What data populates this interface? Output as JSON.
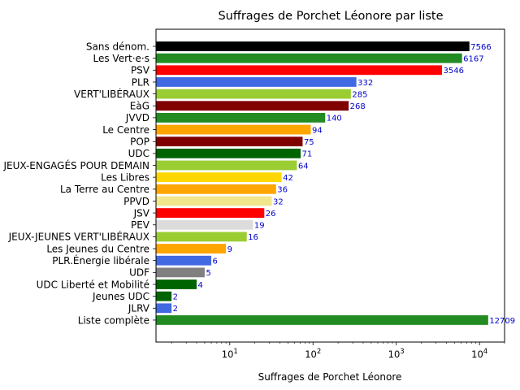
{
  "chart_data": {
    "type": "bar",
    "orientation": "horizontal",
    "title": "Suffrages de Porchet Léonore par liste",
    "xlabel": "Suffrages de Porchet Léonore",
    "ylabel": "",
    "xscale": "log",
    "xlim": [
      1.3,
      20000
    ],
    "grid": false,
    "categories": [
      "Sans dénom.",
      "Les Vert·e·s",
      "PSV",
      "PLR",
      "VERT'LIBÉRAUX",
      "EàG",
      "JVVD",
      "Le Centre",
      "POP",
      "UDC",
      "JEUX-ENGAGÉS POUR DEMAIN",
      "Les Libres",
      "La Terre au Centre",
      "PPVD",
      "JSV",
      "PEV",
      "JEUX-JEUNES VERT'LIBÉRAUX",
      "Les Jeunes du Centre",
      "PLR.Énergie libérale",
      "UDF",
      "UDC Liberté et Mobilité",
      "Jeunes UDC",
      "JLRV",
      "Liste complète"
    ],
    "values": [
      7566,
      6167,
      3546,
      332,
      285,
      268,
      140,
      94,
      75,
      71,
      64,
      42,
      36,
      32,
      26,
      19,
      16,
      9,
      6,
      5,
      4,
      2,
      2,
      12709
    ],
    "value_labels": [
      "7566",
      "6167",
      "3546",
      "332",
      "285",
      "268",
      "140",
      "94",
      "75",
      "71",
      "64",
      "42",
      "36",
      "32",
      "26",
      "19",
      "16",
      "9",
      "6",
      "5",
      "4",
      "2",
      "2",
      "12709"
    ],
    "colors": [
      "#000000",
      "#228b22",
      "#ff0000",
      "#4169e1",
      "#9acd32",
      "#800000",
      "#228b22",
      "#ffa500",
      "#800000",
      "#006400",
      "#9acd32",
      "#ffd700",
      "#ffa500",
      "#f0e68c",
      "#ff0000",
      "#dcdcdc",
      "#9acd32",
      "#ffa500",
      "#4169e1",
      "#808080",
      "#006400",
      "#006400",
      "#4169e1",
      "#228b22"
    ],
    "xticks": [
      {
        "value": 10,
        "base": "10",
        "exp": "1"
      },
      {
        "value": 100,
        "base": "10",
        "exp": "2"
      },
      {
        "value": 1000,
        "base": "10",
        "exp": "3"
      },
      {
        "value": 10000,
        "base": "10",
        "exp": "4"
      }
    ],
    "value_label_color": "#0000cc"
  }
}
